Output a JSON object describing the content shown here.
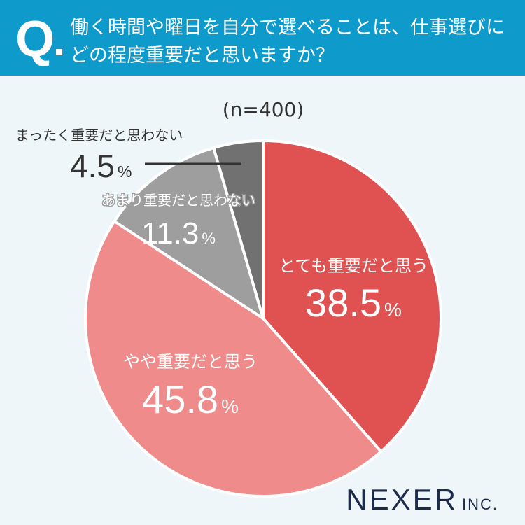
{
  "header": {
    "q_mark": "Q",
    "title": "働く時間や曜日を自分で選べることは、仕事選びに\nどの程度重要だと思いますか？"
  },
  "logo": {
    "main": "NEXER",
    "suffix": "INC."
  },
  "chart_data": {
    "type": "pie",
    "title": "働く時間や曜日を自分で選べることは、仕事選びにどの程度重要だと思いますか？",
    "sample": "(n=400)",
    "categories": [
      "とても重要だと思う",
      "やや重要だと思う",
      "あまり重要だと思わない",
      "まったく重要だと思わない"
    ],
    "values": [
      38.5,
      45.8,
      11.3,
      4.5
    ],
    "labels": [
      "38.5",
      "45.8",
      "11.3",
      "4.5"
    ],
    "unit": "%",
    "colors": [
      "#e05252",
      "#ef8b8b",
      "#9e9e9e",
      "#717171"
    ],
    "start": "top, clockwise"
  }
}
